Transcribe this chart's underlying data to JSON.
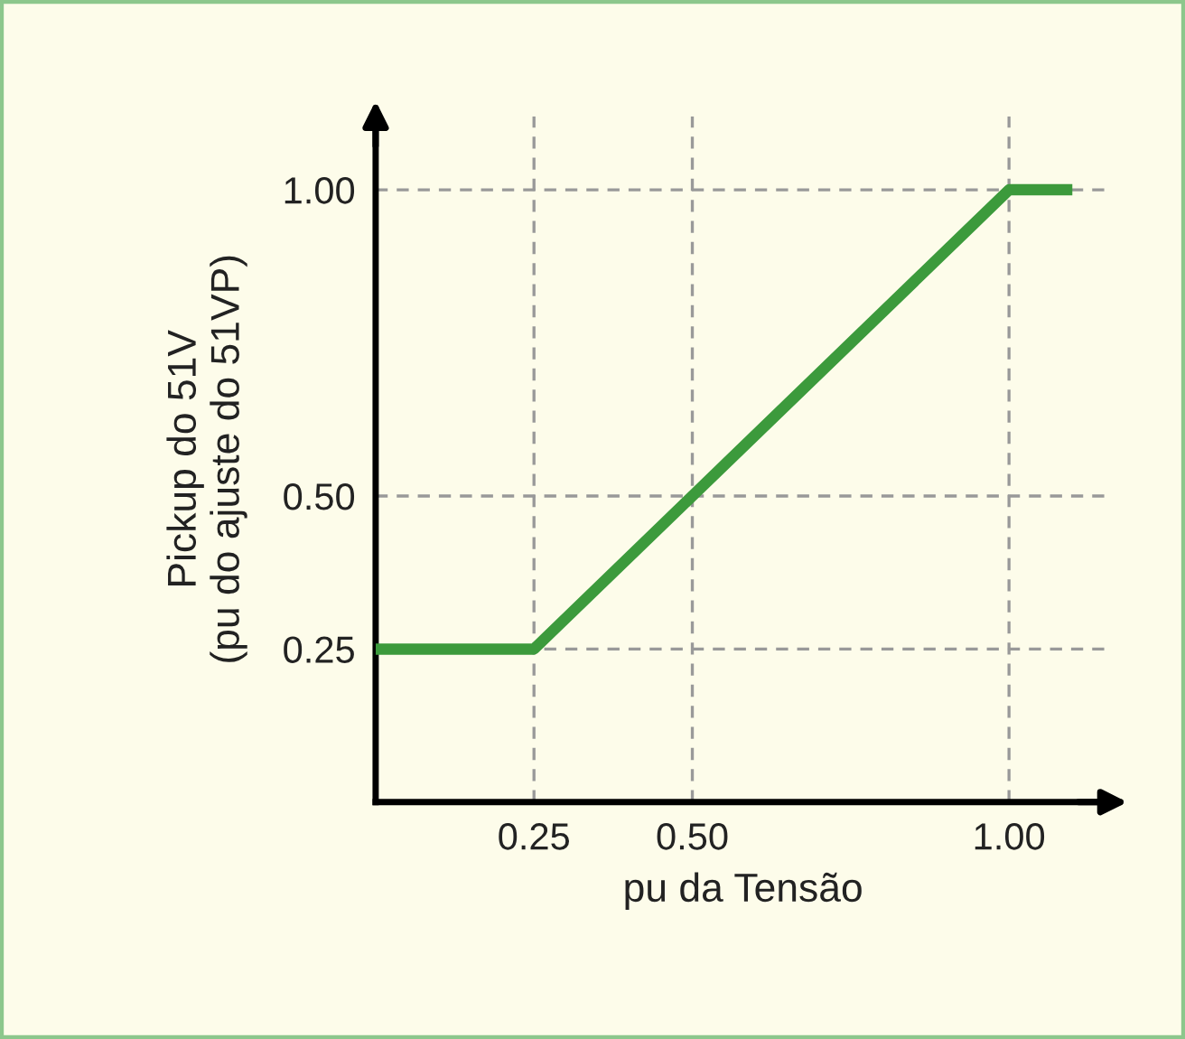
{
  "chart_data": {
    "type": "line",
    "xlabel": "pu da Tensão",
    "ylabel": "Pickup do 51V\n(pu do ajuste do 51VP)",
    "x": [
      0,
      0.25,
      1.0,
      1.1
    ],
    "series": [
      {
        "color": "#3c9a3c",
        "values": [
          0.25,
          0.25,
          1.0,
          1.0
        ]
      }
    ],
    "xlim": [
      0,
      1.16
    ],
    "ylim": [
      0,
      1.12
    ],
    "xticks": [
      {
        "value": 0.25,
        "label": "0.25"
      },
      {
        "value": 0.5,
        "label": "0.50"
      },
      {
        "value": 1.0,
        "label": "1.00"
      }
    ],
    "yticks": [
      {
        "value": 0.25,
        "label": "0.25"
      },
      {
        "value": 0.5,
        "label": "0.50"
      },
      {
        "value": 1.0,
        "label": "1.00"
      }
    ],
    "grid": true,
    "line_style": "solid",
    "marker": "none",
    "legend": false
  }
}
